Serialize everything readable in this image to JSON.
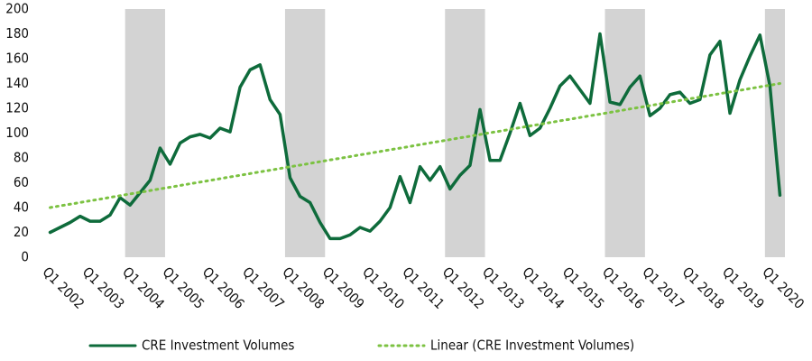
{
  "chart_data": {
    "type": "line",
    "categories": [
      "Q1 2002",
      null,
      null,
      null,
      "Q1 2003",
      null,
      null,
      null,
      "Q1 2004",
      null,
      null,
      null,
      "Q1 2005",
      null,
      null,
      null,
      "Q1 2006",
      null,
      null,
      null,
      "Q1 2007",
      null,
      null,
      null,
      "Q1 2008",
      null,
      null,
      null,
      "Q1 2009",
      null,
      null,
      null,
      "Q1 2010",
      null,
      null,
      null,
      "Q1 2011",
      null,
      null,
      null,
      "Q1 2012",
      null,
      null,
      null,
      "Q1 2013",
      null,
      null,
      null,
      "Q1 2014",
      null,
      null,
      null,
      "Q1 2015",
      null,
      null,
      null,
      "Q1 2016",
      null,
      null,
      null,
      "Q1 2017",
      null,
      null,
      null,
      "Q1 2018",
      null,
      null,
      null,
      "Q1 2019",
      null,
      null,
      null,
      "Q1 2020",
      null
    ],
    "series": [
      {
        "name": "CRE Investment Volumes",
        "color": "#0e6b3b",
        "style": "solid",
        "values": [
          20,
          24,
          28,
          33,
          29,
          29,
          34,
          48,
          42,
          52,
          62,
          88,
          75,
          92,
          97,
          99,
          96,
          104,
          101,
          137,
          151,
          155,
          127,
          115,
          64,
          49,
          44,
          28,
          15,
          15,
          18,
          24,
          21,
          29,
          40,
          65,
          44,
          73,
          62,
          73,
          55,
          66,
          74,
          119,
          78,
          78,
          100,
          124,
          98,
          104,
          120,
          138,
          146,
          135,
          124,
          180,
          125,
          123,
          137,
          146,
          114,
          120,
          131,
          133,
          124,
          127,
          163,
          174,
          116,
          143,
          162,
          179,
          138,
          50
        ]
      },
      {
        "name": "Linear (CRE Investment Volumes)",
        "color": "#7cc242",
        "style": "dotted",
        "values": [
          40,
          41.4,
          42.7,
          44.1,
          45.5,
          46.8,
          48.2,
          49.6,
          51.0,
          52.3,
          53.7,
          55.1,
          56.4,
          57.8,
          59.2,
          60.5,
          61.9,
          63.3,
          64.7,
          66.0,
          67.4,
          68.8,
          70.1,
          71.5,
          72.9,
          74.2,
          75.6,
          77.0,
          78.4,
          79.7,
          81.1,
          82.5,
          83.8,
          85.2,
          86.6,
          87.9,
          89.3,
          90.7,
          92.1,
          93.4,
          94.8,
          96.2,
          97.5,
          98.9,
          100.3,
          101.6,
          103.0,
          104.4,
          105.8,
          107.1,
          108.5,
          109.9,
          111.2,
          112.6,
          114.0,
          115.3,
          116.7,
          118.1,
          119.5,
          120.8,
          122.2,
          123.6,
          124.9,
          126.3,
          127.7,
          129.0,
          130.4,
          131.8,
          133.2,
          134.5,
          135.9,
          137.3,
          138.6,
          140.0
        ]
      }
    ],
    "ylim": [
      0,
      200
    ],
    "yticks": [
      0,
      20,
      40,
      60,
      80,
      100,
      120,
      140,
      160,
      180,
      200
    ],
    "grid": false,
    "legend": "bottom"
  }
}
